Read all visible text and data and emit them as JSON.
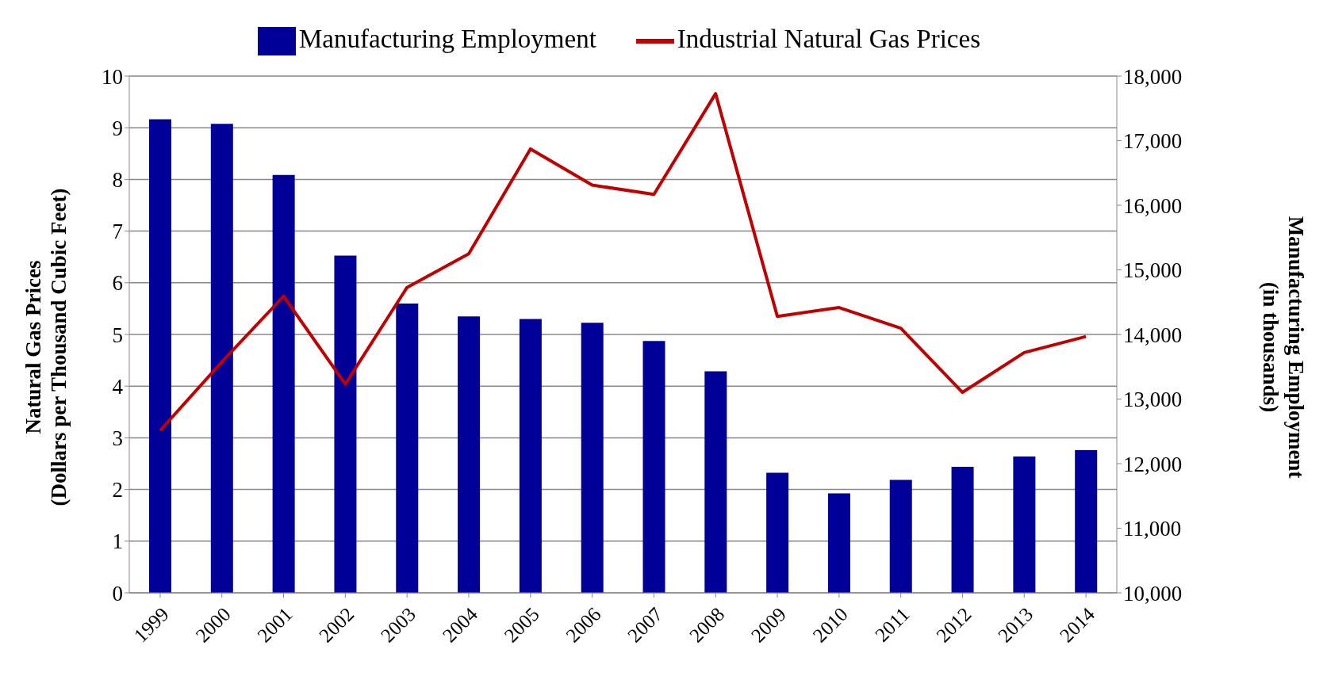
{
  "chart_data": {
    "type": "bar",
    "categories": [
      "1999",
      "2000",
      "2001",
      "2002",
      "2003",
      "2004",
      "2005",
      "2006",
      "2007",
      "2008",
      "2009",
      "2010",
      "2011",
      "2012",
      "2013",
      "2014"
    ],
    "series": [
      {
        "name": "Manufacturing Employment",
        "axis": "y2",
        "color": "#000099",
        "values": [
          17330,
          17260,
          16470,
          15220,
          14480,
          14280,
          14240,
          14180,
          13900,
          13430,
          11860,
          11540,
          11750,
          11950,
          12110,
          12210
        ]
      },
      {
        "name": "Industrial Natural Gas Prices",
        "type": "line",
        "axis": "y",
        "color": "#c00000",
        "values": [
          3.14,
          4.47,
          5.74,
          4.04,
          5.91,
          6.56,
          8.59,
          7.89,
          7.71,
          9.66,
          5.35,
          5.52,
          5.12,
          3.88,
          4.65,
          4.96
        ]
      }
    ],
    "ylabel": "Natural Gas  Prices\n(Dollars per Thousand Cubic Feet)",
    "y2label": "Manufacturing Employment\n(in thousands)",
    "ylim": [
      0,
      10
    ],
    "yticks": [
      0,
      1,
      2,
      3,
      4,
      5,
      6,
      7,
      8,
      9,
      10
    ],
    "y2lim": [
      10000,
      18000
    ],
    "y2ticks": [
      {
        "value": 10000,
        "label": "10,000"
      },
      {
        "value": 11000,
        "label": "11,000"
      },
      {
        "value": 12000,
        "label": "12,000"
      },
      {
        "value": 13000,
        "label": "13,000"
      },
      {
        "value": 14000,
        "label": "14,000"
      },
      {
        "value": 15000,
        "label": "15,000"
      },
      {
        "value": 16000,
        "label": "16,000"
      },
      {
        "value": 17000,
        "label": "17,000"
      },
      {
        "value": 18000,
        "label": "18,000"
      }
    ],
    "grid": "y",
    "legend": "top",
    "marker": "none",
    "line_style": "solid"
  }
}
